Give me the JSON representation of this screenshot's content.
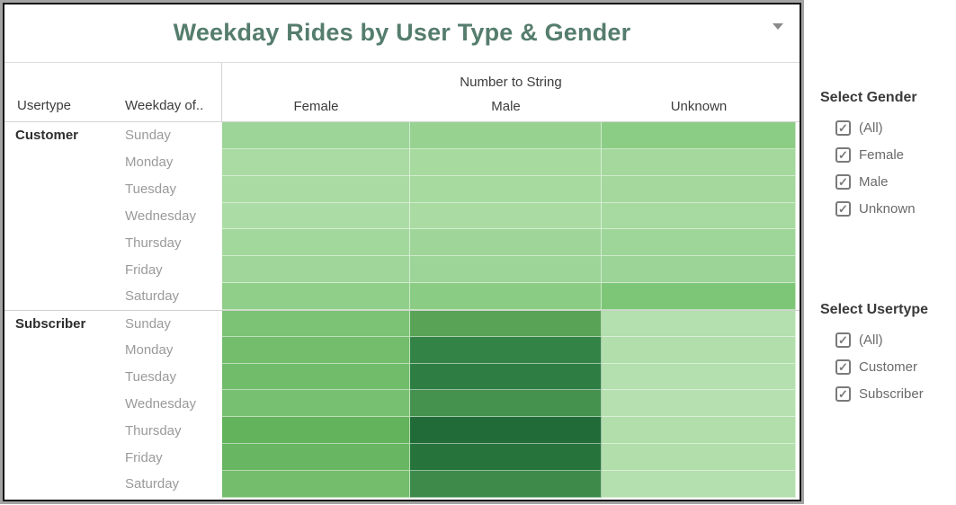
{
  "window": {
    "title": "Weekday Rides by User Type & Gender"
  },
  "table": {
    "usertype_header": "Usertype",
    "weekday_header": "Weekday of..",
    "measure_header": "Number to String"
  },
  "chart_data": {
    "type": "heatmap",
    "title": "Weekday Rides by User Type & Gender",
    "column_group_label": "Number to String",
    "columns": [
      "Female",
      "Male",
      "Unknown"
    ],
    "value_encoding": "cell color encodes number of rides; green sequential palette, darker = more rides; no numeric labels shown",
    "row_groups": [
      {
        "usertype": "Customer",
        "weekdays": [
          "Sunday",
          "Monday",
          "Tuesday",
          "Wednesday",
          "Thursday",
          "Friday",
          "Saturday"
        ],
        "cell_colors": {
          "Female": [
            "#9dd598",
            "#a9dba2",
            "#a9dba2",
            "#acdca6",
            "#a3d89d",
            "#a1d69b",
            "#90cf89"
          ],
          "Male": [
            "#97d291",
            "#a7da9f",
            "#a7da9f",
            "#a9dba3",
            "#9fd599",
            "#9dd497",
            "#8bcc84"
          ],
          "Unknown": [
            "#8ccd86",
            "#a4d89d",
            "#a4d89d",
            "#a7daa0",
            "#9ed598",
            "#9cd396",
            "#7ec677"
          ]
        }
      },
      {
        "usertype": "Subscriber",
        "weekdays": [
          "Sunday",
          "Monday",
          "Tuesday",
          "Wednesday",
          "Thursday",
          "Friday",
          "Saturday"
        ],
        "cell_colors": {
          "Female": [
            "#7cc375",
            "#73bd6c",
            "#71bc6a",
            "#78c071",
            "#63b25c",
            "#68b661",
            "#73bd6c"
          ],
          "Male": [
            "#59a356",
            "#338347",
            "#2e7e44",
            "#45914e",
            "#206b38",
            "#26743c",
            "#3d8a4b"
          ],
          "Unknown": [
            "#b4dfae",
            "#b2deac",
            "#b4dfae",
            "#b6e0b0",
            "#b1deaa",
            "#b2deac",
            "#b4dfae"
          ]
        }
      }
    ]
  },
  "filters": [
    {
      "id": "gender",
      "title": "Select Gender",
      "options": [
        {
          "label": "(All)",
          "checked": true
        },
        {
          "label": "Female",
          "checked": true
        },
        {
          "label": "Male",
          "checked": true
        },
        {
          "label": "Unknown",
          "checked": true
        }
      ]
    },
    {
      "id": "usertype",
      "title": "Select Usertype",
      "options": [
        {
          "label": "(All)",
          "checked": true
        },
        {
          "label": "Customer",
          "checked": true
        },
        {
          "label": "Subscriber",
          "checked": true
        }
      ]
    }
  ],
  "colors": {
    "title_text": "#557d6d",
    "frame_outer": "#a3a3a3",
    "frame_border": "#161616",
    "header_text": "#3d3d3d",
    "weekday_text": "#9a9a9a",
    "checkbox_gray": "#7a7a7a"
  },
  "icons": {
    "dropdown_caret": "caret-down",
    "checkbox_check": "✓"
  }
}
